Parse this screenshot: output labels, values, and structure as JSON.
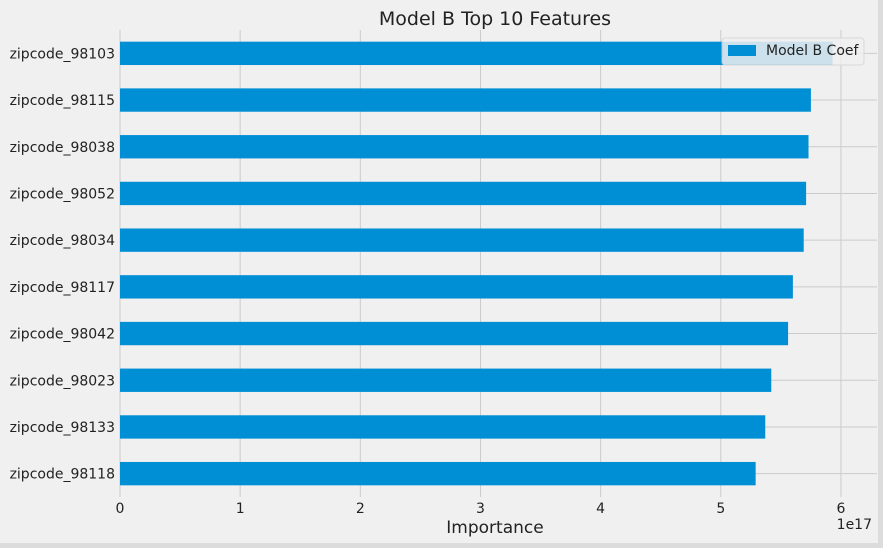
{
  "chart_data": {
    "type": "bar",
    "orientation": "horizontal",
    "title": "Model B Top 10 Features",
    "xlabel": "Importance",
    "ylabel": "",
    "x_offset_text": "1e17",
    "xlim": [
      0,
      6.3
    ],
    "x_ticks": [
      0,
      1,
      2,
      3,
      4,
      5,
      6
    ],
    "x_tick_labels": [
      "0",
      "1",
      "2",
      "3",
      "4",
      "5",
      "6"
    ],
    "grid": true,
    "legend_position": "top-right",
    "bar_color": "#008fd5",
    "categories": [
      "zipcode_98103",
      "zipcode_98115",
      "zipcode_98038",
      "zipcode_98052",
      "zipcode_98034",
      "zipcode_98117",
      "zipcode_98042",
      "zipcode_98023",
      "zipcode_98133",
      "zipcode_98118"
    ],
    "series": [
      {
        "name": "Model B Coef",
        "values": [
          5.93,
          5.75,
          5.73,
          5.71,
          5.69,
          5.6,
          5.56,
          5.42,
          5.37,
          5.29
        ]
      }
    ]
  }
}
